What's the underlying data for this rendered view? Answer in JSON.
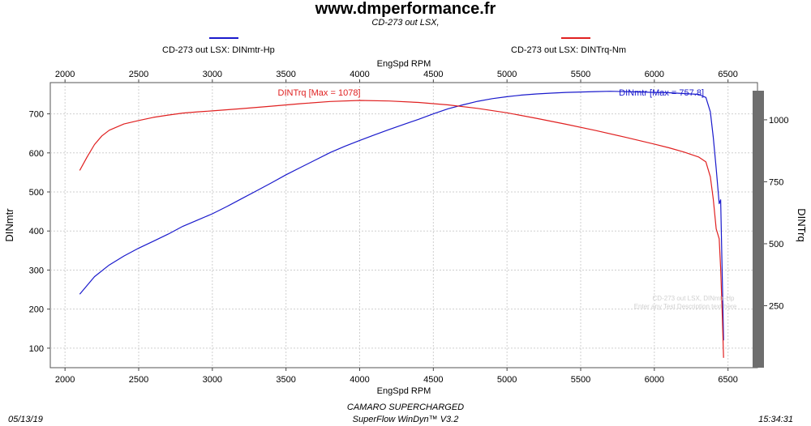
{
  "header": {
    "site": "www.dmperformance.fr",
    "subtitle": "CD-273 out LSX,"
  },
  "legend": [
    {
      "label": "CD-273 out LSX: DINmtr-Hp",
      "color": "#1a1acc"
    },
    {
      "label": "CD-273 out LSX: DINTrq-Nm",
      "color": "#e02020"
    }
  ],
  "footer": {
    "vehicle": "CAMARO SUPERCHARGED",
    "software": "SuperFlow WinDyn™ V3.2",
    "date": "05/13/19",
    "time": "15:34:31"
  },
  "watermark": {
    "line1": "CD-273 out LSX, DINmtr-Hp",
    "line2": "Enter any Test Description text here"
  },
  "chart_data": {
    "type": "line",
    "xlabel": "EngSpd RPM",
    "ylabel_left": "DINmtr",
    "ylabel_right": "DINTrq",
    "xlim": [
      1900,
      6700
    ],
    "ylim_left": [
      50,
      780
    ],
    "ylim_right": [
      0,
      1150
    ],
    "x_ticks": [
      2000,
      2500,
      3000,
      3500,
      4000,
      4500,
      5000,
      5500,
      6000,
      6500
    ],
    "y_ticks_left": [
      100,
      200,
      300,
      400,
      500,
      600,
      700
    ],
    "y_ticks_right": [
      250,
      500,
      750,
      1000
    ],
    "grid": true,
    "legend_position": "top",
    "series": [
      {
        "name": "CD-273 out LSX: DINmtr-Hp",
        "axis": "left",
        "color": "#1a1acc",
        "annotation": "DINmtr [Max = 757.8]",
        "x": [
          2100,
          2200,
          2300,
          2400,
          2500,
          2600,
          2700,
          2800,
          2900,
          3000,
          3100,
          3200,
          3300,
          3400,
          3500,
          3600,
          3700,
          3800,
          3900,
          4000,
          4100,
          4200,
          4300,
          4400,
          4500,
          4600,
          4700,
          4800,
          4900,
          5000,
          5100,
          5200,
          5300,
          5400,
          5500,
          5600,
          5700,
          5800,
          5900,
          6000,
          6100,
          6200,
          6300,
          6350,
          6380,
          6400,
          6420,
          6440,
          6450,
          6460,
          6465,
          6470
        ],
        "values": [
          238,
          283,
          313,
          336,
          356,
          374,
          392,
          412,
          428,
          444,
          463,
          483,
          503,
          523,
          544,
          563,
          582,
          601,
          617,
          632,
          646,
          660,
          673,
          686,
          700,
          713,
          723,
          732,
          739,
          744,
          748,
          751,
          753,
          755,
          756,
          757,
          757.8,
          757,
          756,
          755,
          754,
          752,
          750,
          742,
          705,
          640,
          560,
          470,
          480,
          300,
          210,
          120
        ]
      },
      {
        "name": "CD-273 out LSX: DINTrq-Nm",
        "axis": "right",
        "color": "#e02020",
        "annotation": "DINTrq [Max = 1078]",
        "x": [
          2100,
          2150,
          2200,
          2250,
          2300,
          2400,
          2500,
          2600,
          2700,
          2800,
          2900,
          3000,
          3200,
          3400,
          3600,
          3800,
          4000,
          4200,
          4400,
          4600,
          4800,
          5000,
          5200,
          5400,
          5600,
          5800,
          6000,
          6100,
          6200,
          6300,
          6350,
          6380,
          6400,
          6420,
          6440,
          6450,
          6460,
          6470
        ],
        "values": [
          796,
          850,
          900,
          935,
          958,
          983,
          997,
          1010,
          1019,
          1027,
          1032,
          1036,
          1045,
          1055,
          1065,
          1074,
          1078,
          1076,
          1070,
          1060,
          1046,
          1028,
          1006,
          982,
          957,
          930,
          902,
          887,
          870,
          850,
          830,
          770,
          680,
          560,
          520,
          400,
          230,
          40
        ]
      }
    ]
  }
}
